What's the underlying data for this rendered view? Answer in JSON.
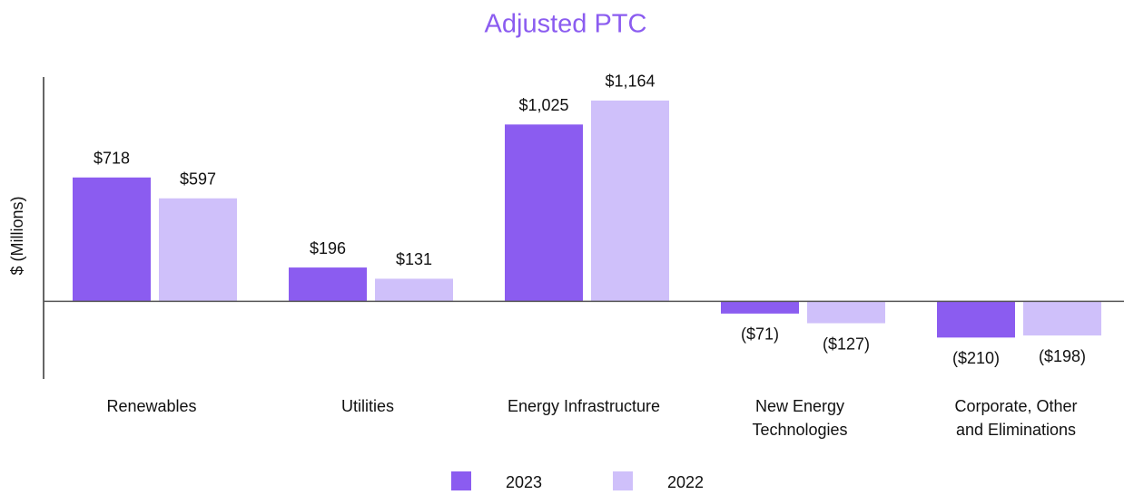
{
  "chart_data": {
    "type": "bar",
    "title": "Adjusted PTC",
    "ylabel": "$ (Millions)",
    "categories": [
      "Renewables",
      "Utilities",
      "Energy Infrastructure",
      "New Energy\nTechnologies",
      "Corporate, Other\nand Eliminations"
    ],
    "series": [
      {
        "name": "2023",
        "color": "#8b5cf0",
        "values": [
          718,
          196,
          1025,
          -71,
          -210
        ],
        "value_labels": [
          "$718",
          "$196",
          "$1,025",
          "($71)",
          "($210)"
        ]
      },
      {
        "name": "2022",
        "color": "#cfc0fa",
        "values": [
          597,
          131,
          1164,
          -127,
          -198
        ],
        "value_labels": [
          "$597",
          "$131",
          "$1,164",
          "($127)",
          "($198)"
        ]
      }
    ],
    "ylim": [
      -450,
      1300
    ]
  }
}
